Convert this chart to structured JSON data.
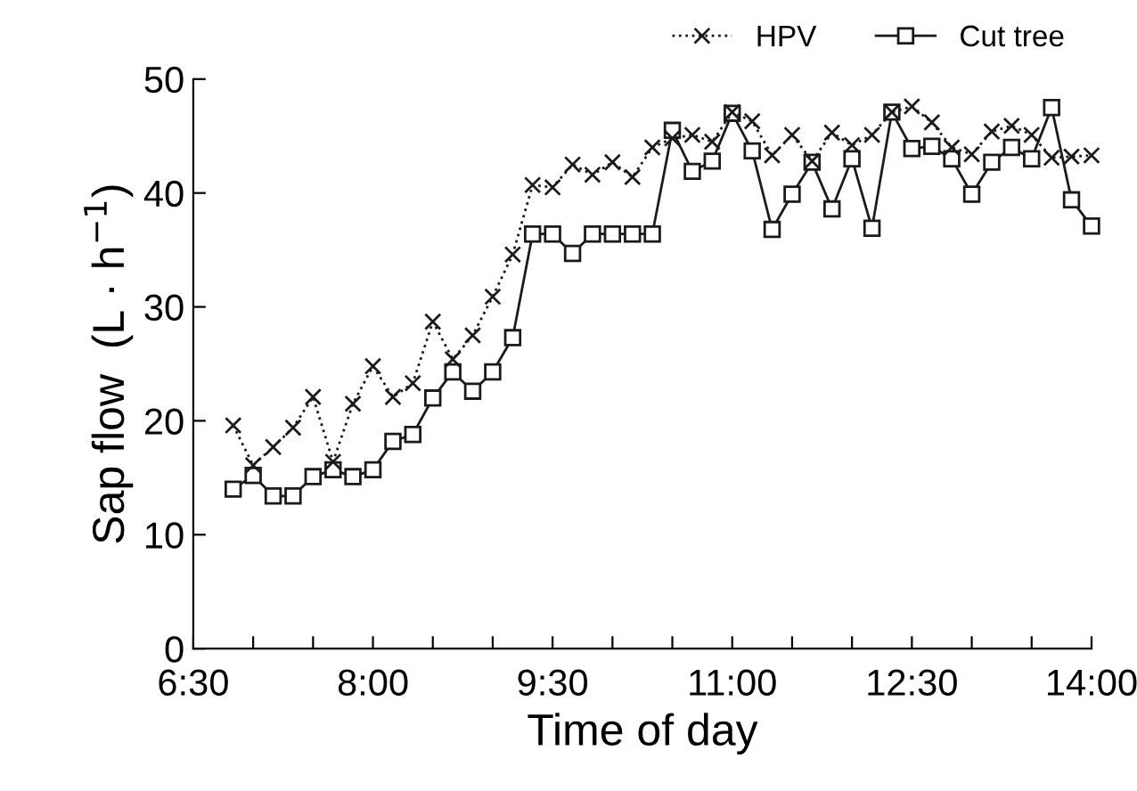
{
  "chart_data": {
    "type": "line",
    "xlabel": "Time of day",
    "ylabel": "Sap flow  (L · h$^{−1}$)",
    "x": [
      6.833,
      7,
      7.167,
      7.333,
      7.5,
      7.667,
      7.833,
      8,
      8.167,
      8.333,
      8.5,
      8.667,
      8.833,
      9,
      9.167,
      9.333,
      9.5,
      9.667,
      9.833,
      10,
      10.167,
      10.333,
      10.5,
      10.667,
      10.833,
      11,
      11.167,
      11.333,
      11.5,
      11.667,
      11.833,
      12,
      12.167,
      12.333,
      12.5,
      12.667,
      12.833,
      13,
      13.167,
      13.333,
      13.5,
      13.667,
      13.833,
      14
    ],
    "series": [
      {
        "name": "HPV",
        "color": "#1a1a1a",
        "marker": "cross",
        "line_style": "dotted",
        "values": [
          19.6,
          16.1,
          17.7,
          19.4,
          22.1,
          16.4,
          21.5,
          24.8,
          22.1,
          23.3,
          28.7,
          25.4,
          27.5,
          30.9,
          34.6,
          40.7,
          40.5,
          42.5,
          41.6,
          42.7,
          41.4,
          44.0,
          44.8,
          45.1,
          44.5,
          47.1,
          46.3,
          43.3,
          45.1,
          42.8,
          45.3,
          44.2,
          45.1,
          47.1,
          47.6,
          46.2,
          44.0,
          43.4,
          45.4,
          45.9,
          45.1,
          43.1,
          43.2,
          43.3
        ]
      },
      {
        "name": "Cut tree",
        "color": "#1a1a1a",
        "marker": "square",
        "line_style": "solid",
        "values": [
          14.0,
          15.2,
          13.4,
          13.4,
          15.1,
          15.7,
          15.1,
          15.7,
          18.2,
          18.8,
          22.0,
          24.3,
          22.6,
          24.3,
          27.3,
          36.4,
          36.4,
          34.7,
          36.4,
          36.4,
          36.4,
          36.4,
          45.5,
          41.9,
          42.8,
          47.0,
          43.7,
          36.8,
          39.9,
          42.7,
          38.6,
          43.0,
          36.9,
          47.1,
          43.9,
          44.1,
          43.0,
          39.9,
          42.7,
          44.0,
          43.0,
          47.5,
          39.4,
          37.1
        ]
      }
    ],
    "xlim": [
      6.5,
      14
    ],
    "xticks": [
      {
        "value": 6.5,
        "label": "6:30"
      },
      {
        "value": 7,
        "label": null
      },
      {
        "value": 7.5,
        "label": null
      },
      {
        "value": 8,
        "label": "8:00"
      },
      {
        "value": 8.5,
        "label": null
      },
      {
        "value": 9,
        "label": null
      },
      {
        "value": 9.5,
        "label": "9:30"
      },
      {
        "value": 10,
        "label": null
      },
      {
        "value": 10.5,
        "label": null
      },
      {
        "value": 11,
        "label": "11:00"
      },
      {
        "value": 11.5,
        "label": null
      },
      {
        "value": 12,
        "label": null
      },
      {
        "value": 12.5,
        "label": "12:30"
      },
      {
        "value": 13,
        "label": null
      },
      {
        "value": 13.5,
        "label": null
      },
      {
        "value": 14,
        "label": "14:00"
      }
    ],
    "ylim": [
      0,
      50
    ],
    "yticks": [
      0,
      10,
      20,
      30,
      40,
      50
    ],
    "grid": false,
    "legend": "top right"
  }
}
